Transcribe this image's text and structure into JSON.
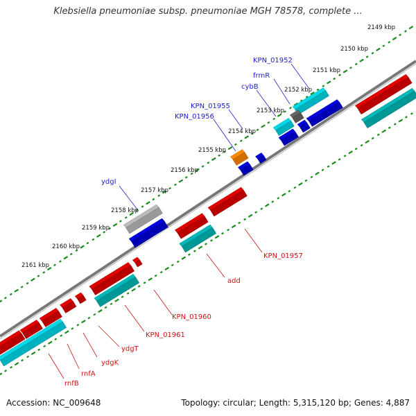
{
  "title": "Klebsiella pneumoniae subsp. pneumoniae MGH 78578, complete ...",
  "footer": {
    "accession": "Accession: NC_009648",
    "topology": "Topology: circular; Length: 5,315,120 bp; Genes: 4,887"
  },
  "ticks": [
    "2149 kbp",
    "2150 kbp",
    "2151 kbp",
    "2152 kbp",
    "2153 kbp",
    "2154 kbp",
    "2155 kbp",
    "2156 kbp",
    "2157 kbp",
    "2158 kbp",
    "2159 kbp",
    "2160 kbp",
    "2161 kbp"
  ],
  "top_labels": [
    "KPN_01952",
    "frmR",
    "cybB",
    "KPN_01955",
    "KPN_01956",
    "ydgI"
  ],
  "bottom_labels": [
    "KPN_01957",
    "add",
    "KPN_01960",
    "KPN_01961",
    "ydgT",
    "ydgK",
    "rnfA",
    "rnfB"
  ],
  "colors": {
    "forward_gene": "#0000dd",
    "forward_cds": "#00d8e8",
    "reverse_gene": "#e00000",
    "reverse_cds": "#00b8b8",
    "pseudo": "#bbbbbb",
    "misc": "#666666",
    "trna": "#ff8800",
    "tick": "#1a8a1a",
    "backbone": "#777777"
  }
}
